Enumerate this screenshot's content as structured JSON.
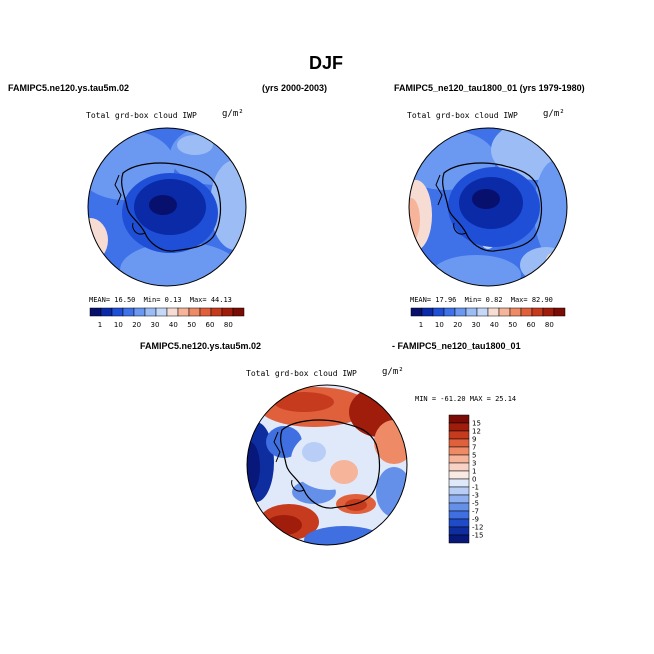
{
  "page": {
    "title": "DJF",
    "left_header": "FAMIPC5.ne120.ys.tau5m.02",
    "left_years": "(yrs 2000-2003)",
    "right_header": "FAMIPC5_ne120_tau1800_01 (yrs 1979-1980)",
    "diff_header_left": "FAMIPC5.ne120.ys.tau5m.02",
    "diff_header_right": "- FAMIPC5_ne120_tau1800_01"
  },
  "panels": {
    "left": {
      "var_label": "Total grd-box cloud IWP",
      "units": "g/m²",
      "stats": {
        "mean_label": "MEAN=",
        "mean": "16.50",
        "min_label": "Min=",
        "min": "0.13",
        "max_label": "Max=",
        "max": "44.13"
      }
    },
    "right": {
      "var_label": "Total grd-box cloud IWP",
      "units": "g/m²",
      "stats": {
        "mean_label": "MEAN=",
        "mean": "17.96",
        "min_label": "Min=",
        "min": "0.82",
        "max_label": "Max=",
        "max": "82.90"
      }
    },
    "diff": {
      "var_label": "Total grd-box cloud IWP",
      "units": "g/m²",
      "minmax": "MIN = -61.20 MAX =  25.14"
    }
  },
  "colorbar_abs": {
    "labels": [
      "1",
      "10",
      "20",
      "30",
      "40",
      "50",
      "60",
      "80"
    ],
    "colors": [
      "#08106e",
      "#0a2aa8",
      "#1f4fd6",
      "#3f72e8",
      "#6b98f0",
      "#9cbcf5",
      "#c6d8f7",
      "#f6dcd2",
      "#f6b49a",
      "#ee8a66",
      "#e0603c",
      "#c63b1e",
      "#a01d0c",
      "#7a0c05"
    ]
  },
  "colorbar_diff": {
    "labels": [
      "15",
      "12",
      "9",
      "7",
      "5",
      "3",
      "1",
      "0",
      "-1",
      "-3",
      "-5",
      "-7",
      "-9",
      "-12",
      "-15"
    ],
    "colors": [
      "#7a0c05",
      "#a01d0c",
      "#c63b1e",
      "#e0603c",
      "#ee8a66",
      "#f6b49a",
      "#f8d2c4",
      "#faeae4",
      "#dfe9fa",
      "#b8cef6",
      "#8fb0f0",
      "#6590ea",
      "#3f6fe0",
      "#1f4bc8",
      "#0e2ea0",
      "#08177a"
    ]
  }
}
